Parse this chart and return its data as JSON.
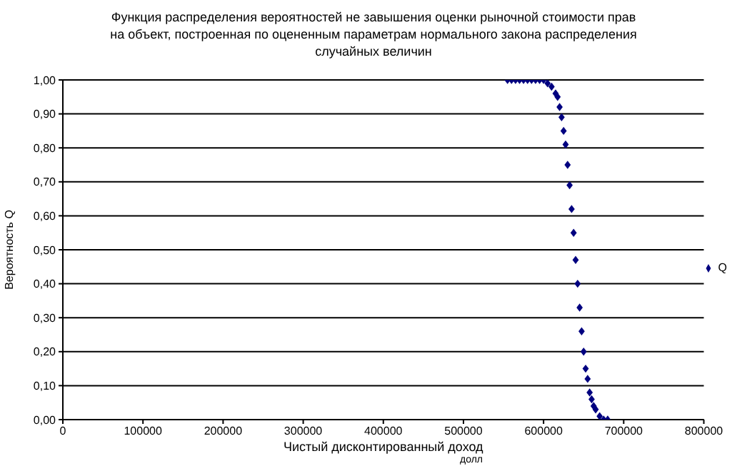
{
  "chart_data": {
    "type": "scatter",
    "title": "Функция распределения вероятностей не завышения оценки рыночной стоимости прав на объект, построенная по оцененным параметрам нормального закона распределения случайных величин",
    "xlabel": "Чистый дисконтированный доход",
    "ylabel": "Вероятность Q",
    "annotations": [
      "долл"
    ],
    "x": [
      555000,
      560000,
      565000,
      570000,
      575000,
      580000,
      585000,
      590000,
      595000,
      600000,
      605000,
      610000,
      615000,
      617500,
      620000,
      622500,
      625000,
      627500,
      630000,
      632500,
      635000,
      637500,
      640000,
      642500,
      645000,
      647500,
      650000,
      652500,
      655000,
      657500,
      660000,
      662500,
      665000,
      670000,
      675000,
      680000
    ],
    "series": [
      {
        "name": "Q",
        "color": "#000080",
        "values": [
          1.0,
          1.0,
          1.0,
          1.0,
          1.0,
          1.0,
          1.0,
          1.0,
          1.0,
          1.0,
          0.99,
          0.98,
          0.96,
          0.95,
          0.92,
          0.89,
          0.85,
          0.81,
          0.75,
          0.69,
          0.62,
          0.55,
          0.47,
          0.4,
          0.33,
          0.26,
          0.2,
          0.15,
          0.12,
          0.08,
          0.06,
          0.04,
          0.03,
          0.01,
          0.0,
          0.0
        ]
      }
    ],
    "xlim": [
      0,
      800000
    ],
    "xticks": [
      0,
      100000,
      200000,
      300000,
      400000,
      500000,
      600000,
      700000,
      800000
    ],
    "ylim": [
      0,
      1
    ],
    "yticks": [
      {
        "value": 0,
        "label": "0,00"
      },
      {
        "value": 0.1,
        "label": "0,10"
      },
      {
        "value": 0.2,
        "label": "0,20"
      },
      {
        "value": 0.3,
        "label": "0,30"
      },
      {
        "value": 0.4,
        "label": "0,40"
      },
      {
        "value": 0.5,
        "label": "0,50"
      },
      {
        "value": 0.6,
        "label": "0,60"
      },
      {
        "value": 0.7,
        "label": "0,70"
      },
      {
        "value": 0.8,
        "label": "0,80"
      },
      {
        "value": 0.9,
        "label": "0,90"
      },
      {
        "value": 1,
        "label": "1,00"
      }
    ],
    "grid": "y",
    "legend": "right",
    "marker": "diamond"
  }
}
